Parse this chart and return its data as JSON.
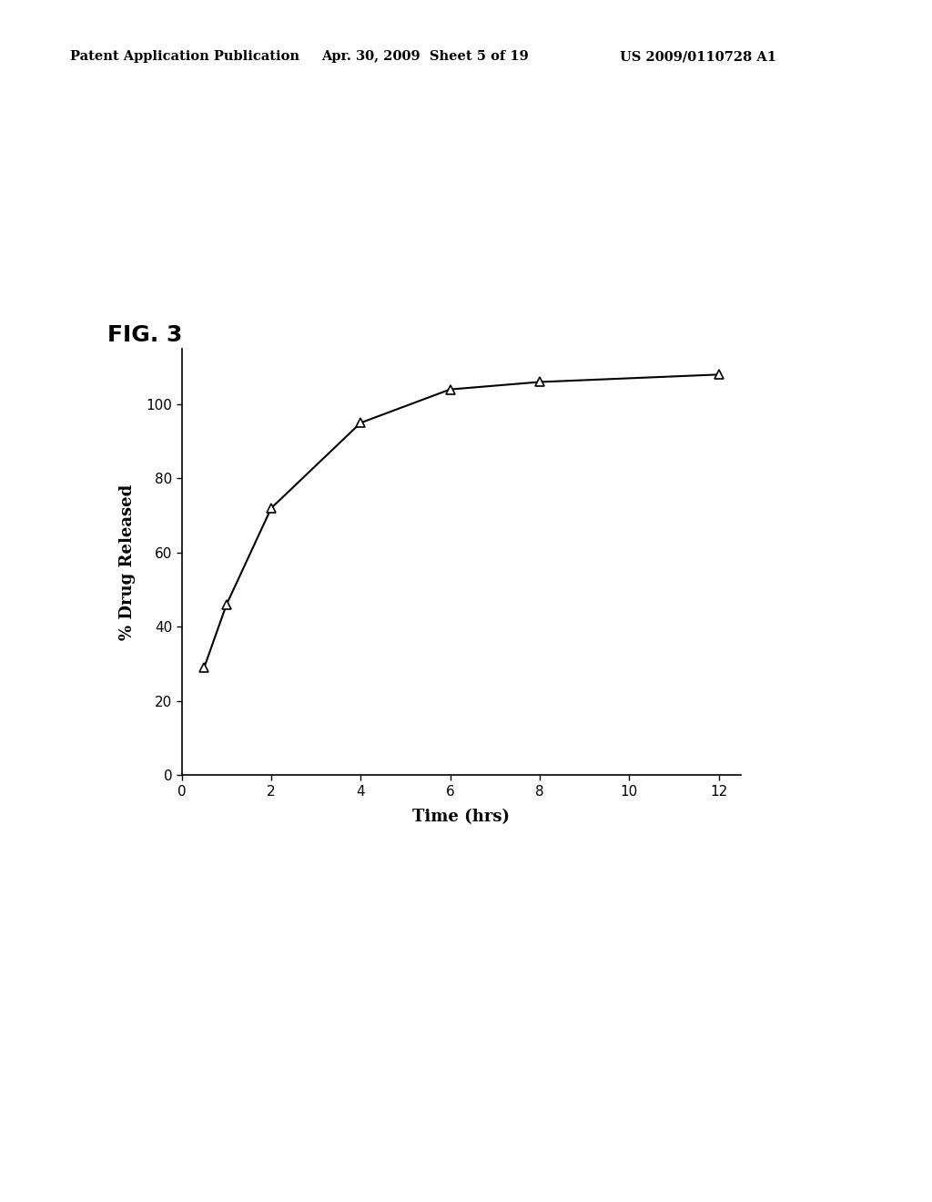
{
  "x": [
    0.5,
    1,
    2,
    4,
    6,
    8,
    12
  ],
  "y": [
    29,
    46,
    72,
    95,
    104,
    106,
    108
  ],
  "xlabel": "Time (hrs)",
  "ylabel": "% Drug Released",
  "fig_label": "FIG. 3",
  "xlim": [
    0,
    12.5
  ],
  "ylim": [
    0,
    115
  ],
  "xticks": [
    0,
    2,
    4,
    6,
    8,
    10,
    12
  ],
  "yticks": [
    0,
    20,
    40,
    60,
    80,
    100
  ],
  "line_color": "#000000",
  "marker": "^",
  "marker_size": 7,
  "marker_facecolor": "white",
  "marker_edgecolor": "#000000",
  "header_left": "Patent Application Publication",
  "header_center": "Apr. 30, 2009  Sheet 5 of 19",
  "header_right": "US 2009/0110728 A1",
  "background_color": "#ffffff",
  "fig_label_fontsize": 18,
  "axis_label_fontsize": 13,
  "tick_fontsize": 11,
  "header_fontsize": 10.5
}
